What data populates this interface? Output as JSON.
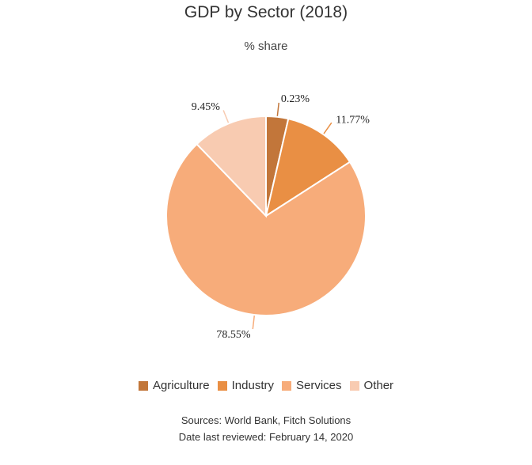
{
  "chart_data": {
    "type": "pie",
    "title": "GDP by Sector (2018)",
    "subtitle": "% share",
    "categories": [
      "Agriculture",
      "Industry",
      "Services",
      "Other"
    ],
    "values": [
      0.23,
      11.77,
      78.55,
      9.45
    ],
    "value_labels": [
      "0.23%",
      "11.77%",
      "78.55%",
      "9.45%"
    ],
    "colors": [
      "#C2763A",
      "#E98F44",
      "#F7AC7A",
      "#F8CBB1"
    ],
    "legend_position": "bottom"
  },
  "footer": {
    "sources": "Sources: World Bank, Fitch Solutions",
    "reviewed": "Date last reviewed: February 14, 2020"
  }
}
